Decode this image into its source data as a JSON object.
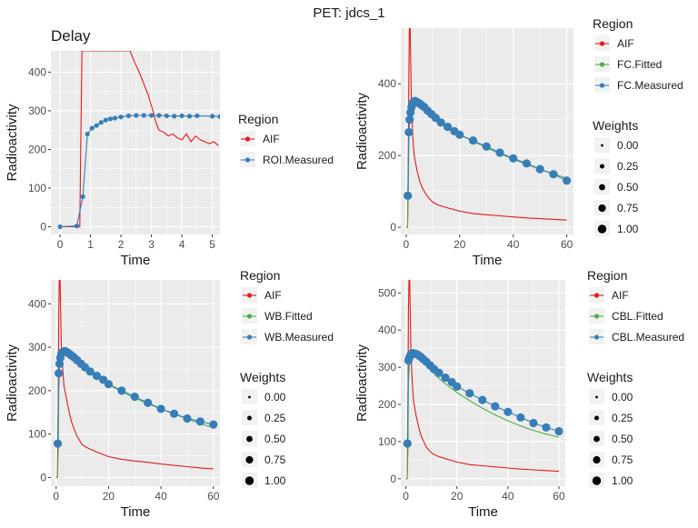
{
  "title": "PET:  jdcs_1",
  "colors": {
    "aif": "#E41A1C",
    "fitted": "#4DAF4A",
    "measured": "#377EB8",
    "panel_bg": "#EBEBEB",
    "grid": "#FFFFFF"
  },
  "chart_data": [
    {
      "type": "line",
      "title": "Delay",
      "xlabel": "Time",
      "ylabel": "Radioactivity",
      "xlim": [
        -0.3,
        5.25
      ],
      "ylim": [
        -20,
        455
      ],
      "xticks": [
        0,
        1,
        2,
        3,
        4,
        5
      ],
      "yticks": [
        0,
        100,
        200,
        300,
        400
      ],
      "legend": {
        "title": "Region",
        "entries": [
          "AIF",
          "ROI.Measured"
        ]
      },
      "series": [
        {
          "name": "AIF",
          "color": "#E41A1C",
          "points": false,
          "x": [
            0,
            0.5,
            0.65,
            0.68,
            0.72,
            0.8,
            0.9,
            1.0,
            2.3,
            2.45,
            2.6,
            2.75,
            2.9,
            3.05,
            3.15,
            3.25,
            3.4,
            3.55,
            3.7,
            3.85,
            4.0,
            4.15,
            4.3,
            4.45,
            4.6,
            4.75,
            4.9,
            5.05,
            5.2
          ],
          "y": [
            0,
            0,
            0,
            200,
            455,
            455,
            455,
            455,
            455,
            425,
            400,
            370,
            340,
            300,
            270,
            250,
            245,
            235,
            240,
            230,
            225,
            240,
            220,
            235,
            225,
            220,
            215,
            220,
            210
          ]
        },
        {
          "name": "ROI.Measured",
          "color": "#377EB8",
          "points": true,
          "x": [
            0,
            0.55,
            0.75,
            0.9,
            1.05,
            1.2,
            1.35,
            1.5,
            1.65,
            1.8,
            2.0,
            2.25,
            2.5,
            2.75,
            3.0,
            3.25,
            3.5,
            3.75,
            4.0,
            4.25,
            4.5,
            5.0,
            5.25
          ],
          "y": [
            0,
            2,
            78,
            240,
            255,
            262,
            270,
            276,
            279,
            281,
            284,
            287,
            288,
            288,
            288,
            288,
            287,
            286,
            287,
            286,
            287,
            286,
            285
          ]
        }
      ]
    },
    {
      "type": "line",
      "title": "",
      "xlabel": "Time",
      "ylabel": "Radioactivity",
      "xlim": [
        -2,
        62.5
      ],
      "ylim": [
        -20,
        555
      ],
      "xticks": [
        0,
        20,
        40,
        60
      ],
      "yticks": [
        0,
        200,
        400
      ],
      "legend": {
        "title": "Region",
        "entries": [
          "AIF",
          "FC.Fitted",
          "FC.Measured"
        ],
        "weights_title": "Weights",
        "weights": [
          "0.00",
          "0.25",
          "0.50",
          "0.75",
          "1.00"
        ]
      },
      "series": [
        {
          "name": "AIF",
          "color": "#E41A1C",
          "points": false,
          "x": [
            0,
            0.5,
            0.8,
            1.0,
            1.2,
            1.5,
            2,
            2.5,
            3,
            4,
            5,
            6,
            8,
            10,
            12,
            15,
            20,
            25,
            30,
            35,
            40,
            45,
            50,
            55,
            60
          ],
          "y": [
            0,
            0,
            150,
            400,
            555,
            555,
            330,
            250,
            200,
            160,
            130,
            110,
            85,
            70,
            62,
            55,
            45,
            38,
            35,
            32,
            29,
            26,
            24,
            22,
            20
          ]
        },
        {
          "name": "FC.Fitted",
          "color": "#4DAF4A",
          "points": false,
          "x": [
            0,
            0.5,
            0.8,
            1.0,
            1.3,
            1.7,
            2,
            2.5,
            3,
            3.5,
            4,
            5,
            6,
            8,
            10,
            12,
            15,
            20,
            25,
            30,
            35,
            40,
            45,
            50,
            55,
            60
          ],
          "y": [
            0,
            0,
            80,
            250,
            300,
            330,
            345,
            350,
            352,
            351,
            348,
            342,
            335,
            322,
            308,
            295,
            280,
            258,
            240,
            222,
            205,
            190,
            175,
            162,
            149,
            137
          ]
        },
        {
          "name": "FC.Measured",
          "color": "#377EB8",
          "points": true,
          "x": [
            0.6,
            1.0,
            1.3,
            1.6,
            2.0,
            2.4,
            2.8,
            3.3,
            3.8,
            4.3,
            5.0,
            5.8,
            6.8,
            8.0,
            9.5,
            11,
            13,
            15.5,
            18,
            20,
            25,
            30,
            35,
            40,
            45,
            50,
            55,
            60
          ],
          "y": [
            88,
            265,
            300,
            320,
            335,
            345,
            350,
            352,
            350,
            348,
            345,
            340,
            335,
            325,
            315,
            305,
            292,
            280,
            268,
            258,
            242,
            225,
            208,
            192,
            178,
            162,
            148,
            130
          ]
        }
      ]
    },
    {
      "type": "line",
      "title": "",
      "xlabel": "Time",
      "ylabel": "Radioactivity",
      "xlim": [
        -2,
        62.5
      ],
      "ylim": [
        -20,
        455
      ],
      "xticks": [
        0,
        20,
        40,
        60
      ],
      "yticks": [
        0,
        100,
        200,
        300,
        400
      ],
      "legend": {
        "title": "Region",
        "entries": [
          "AIF",
          "WB.Fitted",
          "WB.Measured"
        ],
        "weights_title": "Weights",
        "weights": [
          "0.00",
          "0.25",
          "0.50",
          "0.75",
          "1.00"
        ]
      },
      "series": [
        {
          "name": "AIF",
          "color": "#E41A1C",
          "points": false,
          "x": [
            0,
            0.5,
            0.8,
            1.0,
            1.2,
            1.5,
            2,
            2.5,
            3,
            4,
            5,
            6,
            8,
            10,
            12,
            15,
            20,
            25,
            30,
            35,
            40,
            45,
            50,
            55,
            60
          ],
          "y": [
            0,
            0,
            170,
            380,
            455,
            455,
            300,
            250,
            210,
            180,
            150,
            125,
            95,
            75,
            68,
            60,
            48,
            42,
            38,
            35,
            31,
            28,
            25,
            22,
            20
          ]
        },
        {
          "name": "WB.Fitted",
          "color": "#4DAF4A",
          "points": false,
          "x": [
            0,
            0.5,
            0.8,
            1.0,
            1.3,
            1.7,
            2,
            2.5,
            3,
            3.5,
            4,
            5,
            6,
            8,
            10,
            12,
            15,
            20,
            25,
            30,
            35,
            40,
            45,
            50,
            55,
            60
          ],
          "y": [
            0,
            0,
            60,
            200,
            250,
            275,
            285,
            290,
            291,
            290,
            288,
            283,
            277,
            266,
            255,
            245,
            232,
            214,
            198,
            183,
            170,
            158,
            146,
            135,
            124,
            115
          ]
        },
        {
          "name": "WB.Measured",
          "color": "#377EB8",
          "points": true,
          "x": [
            0.6,
            1.0,
            1.3,
            1.6,
            2.0,
            2.4,
            2.8,
            3.3,
            3.8,
            4.3,
            5.0,
            5.8,
            6.8,
            8.0,
            9.5,
            11,
            13,
            15.5,
            18,
            20,
            25,
            30,
            35,
            40,
            45,
            50,
            55,
            60
          ],
          "y": [
            78,
            240,
            262,
            276,
            285,
            288,
            290,
            291,
            290,
            288,
            285,
            281,
            277,
            270,
            262,
            254,
            244,
            234,
            225,
            215,
            200,
            186,
            172,
            158,
            147,
            136,
            129,
            122
          ]
        }
      ]
    },
    {
      "type": "line",
      "title": "",
      "xlabel": "Time",
      "ylabel": "Radioactivity",
      "xlim": [
        -2,
        62.5
      ],
      "ylim": [
        -20,
        535
      ],
      "xticks": [
        0,
        20,
        40,
        60
      ],
      "yticks": [
        0,
        100,
        200,
        300,
        400,
        500
      ],
      "legend": {
        "title": "Region",
        "entries": [
          "AIF",
          "CBL.Fitted",
          "CBL.Measured"
        ],
        "weights_title": "Weights",
        "weights": [
          "0.00",
          "0.25",
          "0.50",
          "0.75",
          "1.00"
        ]
      },
      "series": [
        {
          "name": "AIF",
          "color": "#E41A1C",
          "points": false,
          "x": [
            0,
            0.5,
            0.8,
            1.0,
            1.2,
            1.5,
            2,
            2.5,
            3,
            4,
            5,
            6,
            8,
            10,
            12,
            15,
            20,
            25,
            30,
            35,
            40,
            45,
            50,
            55,
            60
          ],
          "y": [
            0,
            0,
            200,
            450,
            535,
            535,
            330,
            260,
            210,
            170,
            140,
            115,
            85,
            70,
            62,
            55,
            45,
            38,
            35,
            32,
            29,
            26,
            24,
            22,
            20
          ]
        },
        {
          "name": "CBL.Fitted",
          "color": "#4DAF4A",
          "points": false,
          "x": [
            0,
            0.5,
            0.8,
            1.0,
            1.3,
            1.7,
            2,
            2.5,
            3,
            3.5,
            4,
            5,
            6,
            8,
            10,
            12,
            15,
            20,
            25,
            30,
            35,
            40,
            45,
            50,
            55,
            60
          ],
          "y": [
            0,
            0,
            80,
            260,
            305,
            325,
            332,
            336,
            337,
            336,
            334,
            328,
            320,
            305,
            290,
            276,
            258,
            232,
            210,
            190,
            172,
            156,
            142,
            130,
            120,
            112
          ]
        },
        {
          "name": "CBL.Measured",
          "color": "#377EB8",
          "points": true,
          "x": [
            0.6,
            1.0,
            1.3,
            1.6,
            2.0,
            2.4,
            2.8,
            3.3,
            3.8,
            4.3,
            5.0,
            5.8,
            6.8,
            8.0,
            9.5,
            11,
            13,
            15.5,
            18,
            20,
            25,
            30,
            35,
            40,
            45,
            50,
            55,
            60
          ],
          "y": [
            95,
            318,
            325,
            330,
            335,
            338,
            338,
            337,
            336,
            335,
            332,
            328,
            322,
            315,
            305,
            295,
            285,
            272,
            260,
            248,
            230,
            212,
            195,
            180,
            165,
            150,
            138,
            128
          ]
        }
      ]
    }
  ]
}
